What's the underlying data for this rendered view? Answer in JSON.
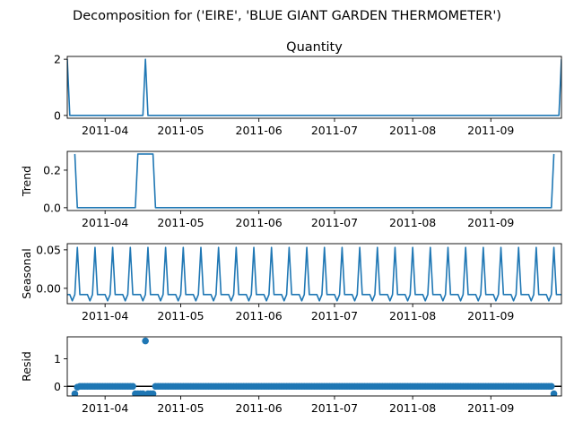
{
  "suptitle": "Decomposition for ('EIRE', 'BLUE GIANT GARDEN THERMOMETER')",
  "colors": {
    "line": "#1f77b4",
    "axis": "#000000",
    "zero_line": "#000000"
  },
  "chart_data": [
    {
      "type": "line",
      "title": "Quantity",
      "ylabel": "",
      "xlim": [
        "2011-03-17",
        "2011-09-29"
      ],
      "ylim": [
        -0.1,
        2.1
      ],
      "yticks": [
        0,
        2
      ],
      "xticks": [
        "2011-04",
        "2011-05",
        "2011-06",
        "2011-07",
        "2011-08",
        "2011-09"
      ],
      "grid": false,
      "series": [
        {
          "x": [
            "2011-03-17",
            "2011-03-18",
            "2011-04-16",
            "2011-04-17",
            "2011-04-18",
            "2011-09-28",
            "2011-09-29"
          ],
          "y": [
            2,
            0,
            0,
            2,
            0,
            0,
            2
          ]
        }
      ]
    },
    {
      "type": "line",
      "title": "",
      "ylabel": "Trend",
      "xlim": [
        "2011-03-17",
        "2011-09-29"
      ],
      "ylim": [
        -0.015,
        0.3
      ],
      "yticks": [
        0.0,
        0.2
      ],
      "xticks": [
        "2011-04",
        "2011-05",
        "2011-06",
        "2011-07",
        "2011-08",
        "2011-09"
      ],
      "grid": false,
      "series": [
        {
          "x": [
            "2011-03-20",
            "2011-03-21",
            "2011-04-13",
            "2011-04-14",
            "2011-04-20",
            "2011-04-21",
            "2011-09-25",
            "2011-09-26"
          ],
          "y": [
            0.286,
            0,
            0,
            0.286,
            0.286,
            0,
            0,
            0.286
          ]
        }
      ]
    },
    {
      "type": "line",
      "title": "",
      "ylabel": "Seasonal",
      "xlim": [
        "2011-03-17",
        "2011-09-29"
      ],
      "ylim": [
        -0.02,
        0.058
      ],
      "yticks": [
        0.0,
        0.05
      ],
      "xticks": [
        "2011-04",
        "2011-05",
        "2011-06",
        "2011-07",
        "2011-08",
        "2011-09"
      ],
      "grid": false,
      "period_days": 7,
      "start": "2011-03-17",
      "end": "2011-09-29",
      "pattern": [
        -0.0082,
        -0.0082,
        -0.0163,
        -0.0082,
        0.0531,
        -0.0082,
        -0.0082
      ]
    },
    {
      "type": "scatter",
      "title": "",
      "ylabel": "Resid",
      "xlim": [
        "2011-03-17",
        "2011-09-29"
      ],
      "ylim": [
        -0.35,
        1.8
      ],
      "yticks": [
        0,
        1
      ],
      "xticks": [
        "2011-04",
        "2011-05",
        "2011-06",
        "2011-07",
        "2011-08",
        "2011-09"
      ],
      "grid": false,
      "zero_line": true,
      "start": "2011-03-20",
      "end": "2011-09-26",
      "default": 0.0,
      "overrides": {
        "2011-03-20": -0.27,
        "2011-03-21": -0.03,
        "2011-04-13": -0.27,
        "2011-04-14": -0.27,
        "2011-04-15": -0.27,
        "2011-04-16": -0.27,
        "2011-04-17": 1.65,
        "2011-04-18": -0.27,
        "2011-04-19": -0.27,
        "2011-04-20": -0.27,
        "2011-09-26": -0.27
      }
    }
  ]
}
